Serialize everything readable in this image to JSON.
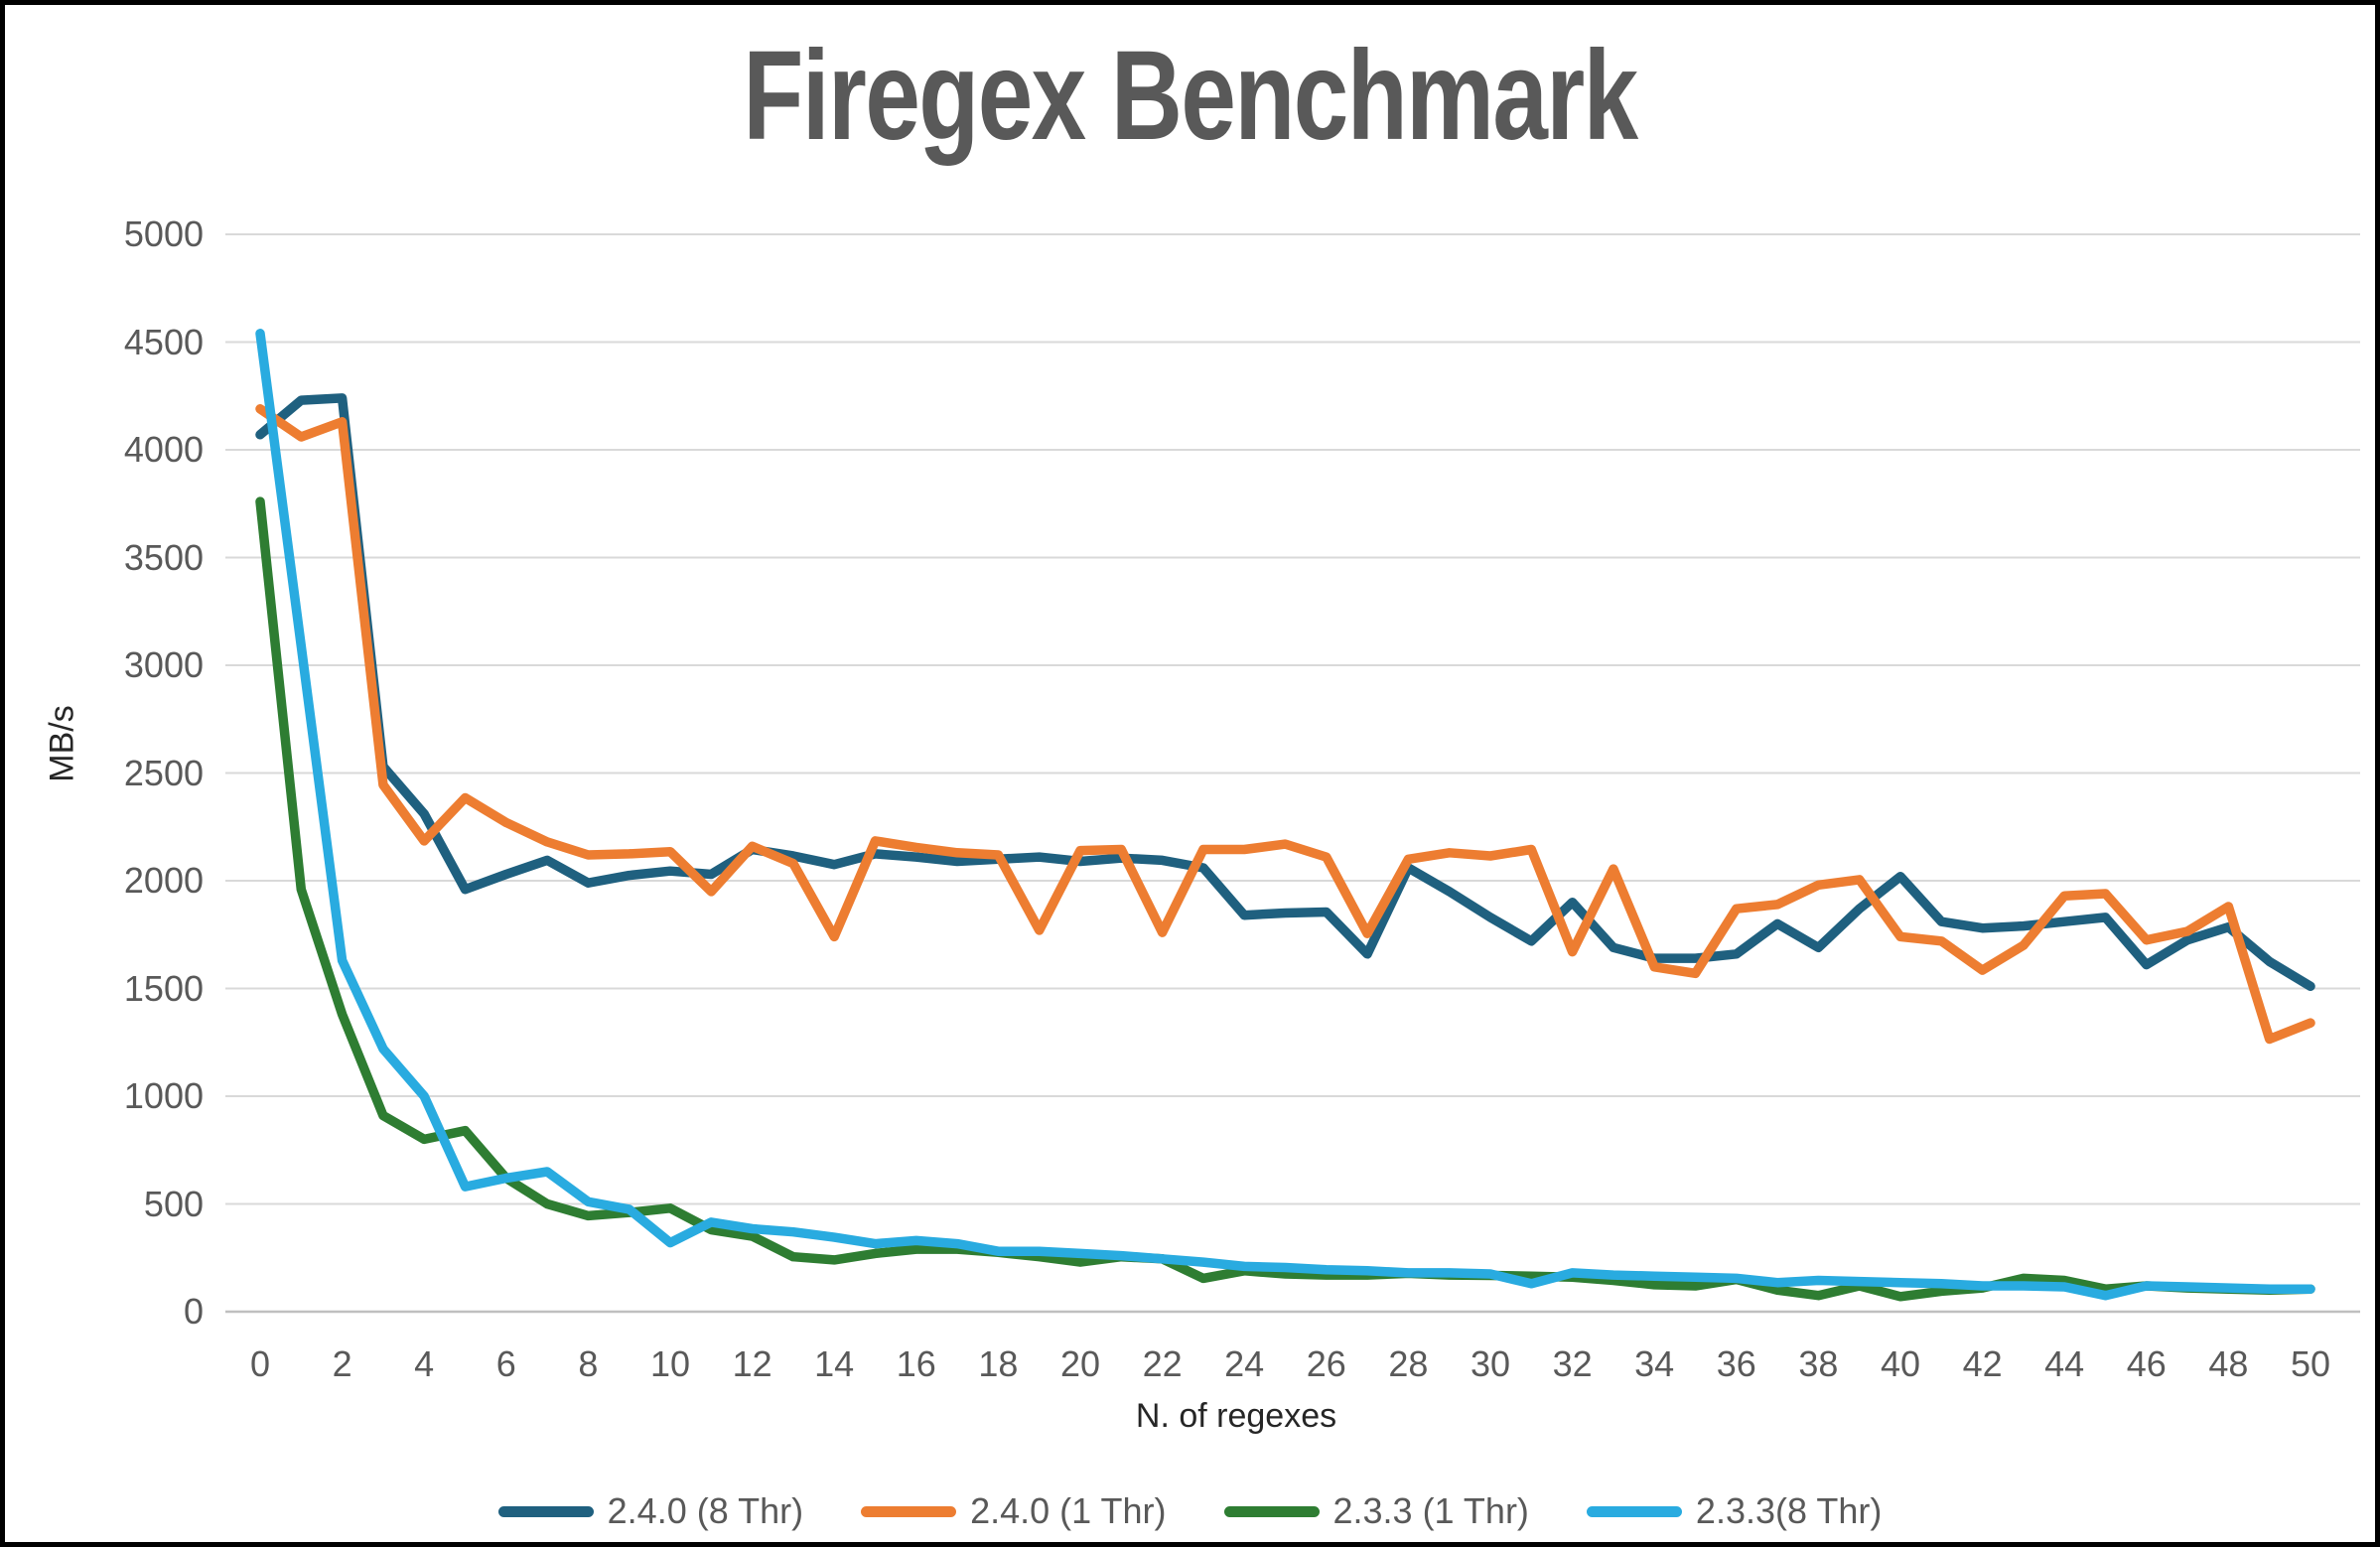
{
  "page": {
    "background_color": "#FFFFFF",
    "border_color": "#000000"
  },
  "chart_data": {
    "type": "line",
    "title": "Firegex Benchmark",
    "xlabel": "N. of regexes",
    "ylabel": "MB/s",
    "ylim": [
      0,
      5000
    ],
    "y_tick_step": 500,
    "y_tick_labels": [
      "0",
      "500",
      "1000",
      "1500",
      "2000",
      "2500",
      "3000",
      "3500",
      "4000",
      "4500",
      "5000"
    ],
    "x_tick_step": 2,
    "x_tick_labels": [
      "0",
      "2",
      "4",
      "6",
      "8",
      "10",
      "12",
      "14",
      "16",
      "18",
      "20",
      "22",
      "24",
      "26",
      "28",
      "30",
      "32",
      "34",
      "36",
      "38",
      "40",
      "42",
      "44",
      "46",
      "48",
      "50"
    ],
    "grid": "horizontal",
    "legend_position": "bottom",
    "grid_color": "#D9D9D9",
    "zero_line_color": "#BFBFBF",
    "tick_label_color": "#595959",
    "title_color": "#595959",
    "axis_title_color": "#262626",
    "x": [
      0,
      1,
      2,
      3,
      4,
      5,
      6,
      7,
      8,
      9,
      10,
      11,
      12,
      13,
      14,
      15,
      16,
      17,
      18,
      19,
      20,
      21,
      22,
      23,
      24,
      25,
      26,
      27,
      28,
      29,
      30,
      31,
      32,
      33,
      34,
      35,
      36,
      37,
      38,
      39,
      40,
      41,
      42,
      43,
      44,
      45,
      46,
      47,
      48,
      49,
      50
    ],
    "series": [
      {
        "name": "2.4.0 (8 Thr)",
        "color": "#1F607F",
        "values": [
          4070,
          4230,
          4240,
          2530,
          2310,
          1960,
          2030,
          2095,
          1990,
          2025,
          2045,
          2030,
          2145,
          2115,
          2075,
          2125,
          2110,
          2090,
          2100,
          2110,
          2090,
          2105,
          2095,
          2060,
          1840,
          1850,
          1855,
          1660,
          2060,
          1950,
          1830,
          1720,
          1900,
          1690,
          1640,
          1640,
          1660,
          1800,
          1690,
          1870,
          2020,
          1810,
          1780,
          1790,
          1810,
          1830,
          1610,
          1725,
          1785,
          1625,
          1510
        ]
      },
      {
        "name": "2.4.0 (1 Thr)",
        "color": "#ED7D31",
        "values": [
          4190,
          4060,
          4130,
          2445,
          2185,
          2385,
          2270,
          2180,
          2120,
          2125,
          2135,
          1950,
          2160,
          2080,
          1740,
          2185,
          2155,
          2130,
          2120,
          1770,
          2140,
          2145,
          1760,
          2145,
          2145,
          2170,
          2110,
          1755,
          2100,
          2130,
          2115,
          2145,
          1670,
          2055,
          1600,
          1570,
          1870,
          1890,
          1980,
          2005,
          1740,
          1720,
          1585,
          1700,
          1930,
          1940,
          1725,
          1765,
          1880,
          1265,
          1340
        ]
      },
      {
        "name": "2.3.3 (1 Thr)",
        "color": "#2E7D32",
        "values": [
          3760,
          1960,
          1380,
          910,
          800,
          840,
          620,
          500,
          445,
          460,
          480,
          380,
          350,
          255,
          240,
          270,
          290,
          290,
          275,
          255,
          230,
          255,
          245,
          155,
          190,
          175,
          170,
          170,
          178,
          170,
          168,
          165,
          160,
          145,
          125,
          120,
          150,
          100,
          75,
          120,
          70,
          95,
          110,
          155,
          145,
          105,
          120,
          110,
          105,
          100,
          105
        ]
      },
      {
        "name": "2.3.3(8 Thr)",
        "color": "#29ABE0",
        "values": [
          4540,
          3090,
          1630,
          1220,
          1000,
          580,
          620,
          650,
          510,
          475,
          320,
          415,
          385,
          370,
          345,
          315,
          330,
          315,
          280,
          280,
          270,
          260,
          245,
          230,
          210,
          205,
          195,
          190,
          180,
          180,
          175,
          130,
          180,
          170,
          165,
          160,
          155,
          135,
          145,
          140,
          135,
          130,
          120,
          120,
          115,
          75,
          120,
          115,
          110,
          105,
          105
        ]
      }
    ]
  }
}
